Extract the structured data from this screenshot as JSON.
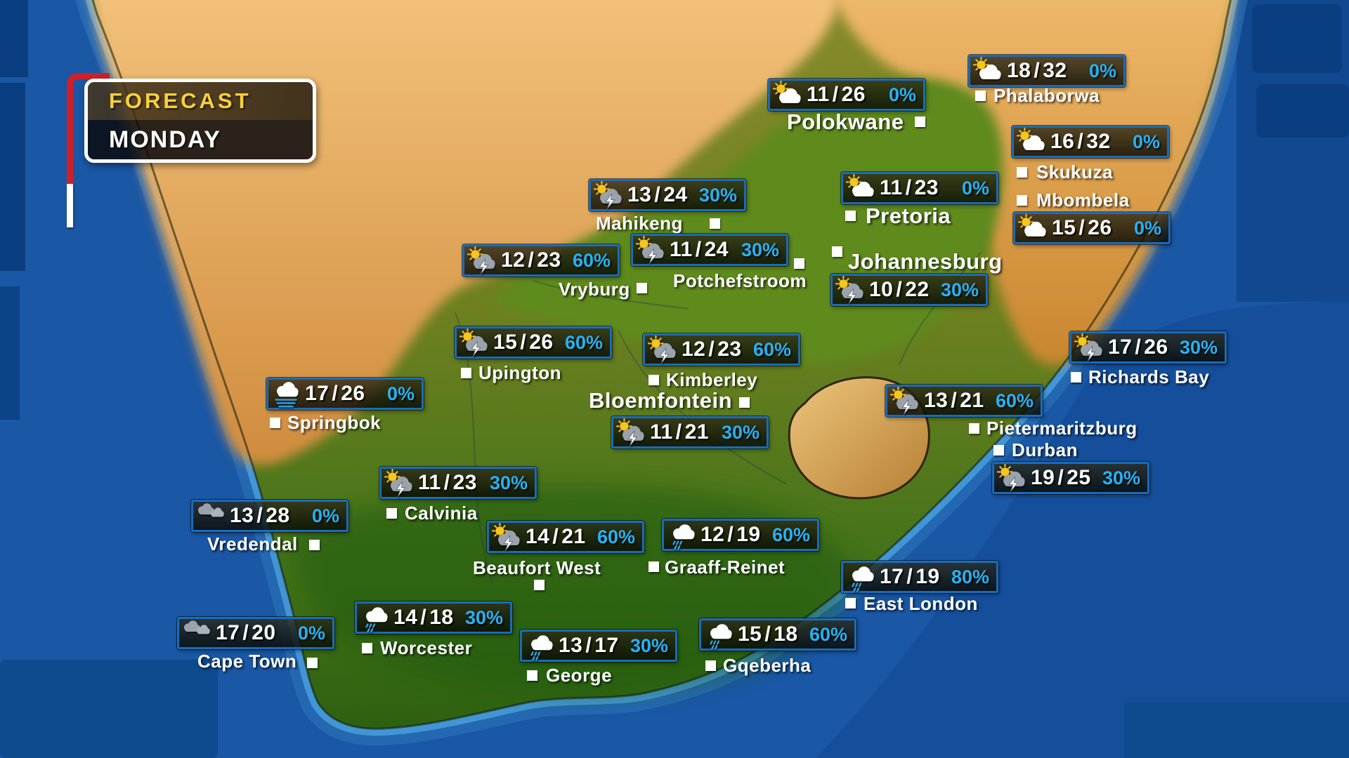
{
  "header": {
    "title": "FORECAST",
    "day": "MONDAY"
  },
  "colors": {
    "badge_border_blue": "#1a6cba",
    "precip_blue": "#25b2f4",
    "forecast_yellow": "#f7d03c",
    "red_accent": "#cf2027",
    "label_white": "#ffffff",
    "ocean_blue": "#1a57a5",
    "desert_orange": "#e0a552",
    "land_green": "#5d7f1d"
  },
  "icon_legend": {
    "partly-cloudy": "sun with white cloud",
    "thunder": "sun with grey cloud and lightning bolt",
    "rain": "white cloud with rain streaks",
    "cloudy": "two grey clouds",
    "fog": "white cloud over mist lines"
  },
  "cities": [
    {
      "name": "Polokwane",
      "min": 11,
      "max": 26,
      "precip": "0%",
      "icon": "partly-cloudy",
      "major": true,
      "badge": [
        1093,
        112
      ],
      "label": [
        1120,
        156
      ],
      "marker": [
        1302,
        166
      ]
    },
    {
      "name": "Phalaborwa",
      "min": 18,
      "max": 32,
      "precip": "0%",
      "icon": "partly-cloudy",
      "major": false,
      "badge": [
        1378,
        78
      ],
      "label": [
        1414,
        121
      ],
      "marker": [
        1388,
        129
      ]
    },
    {
      "name": "Skukuza",
      "min": 16,
      "max": 32,
      "precip": "0%",
      "icon": "partly-cloudy",
      "major": false,
      "badge": [
        1440,
        179
      ],
      "label": [
        1475,
        230
      ],
      "marker": [
        1447,
        238
      ]
    },
    {
      "name": "Mbombela",
      "min": 15,
      "max": 26,
      "precip": "0%",
      "icon": "partly-cloudy",
      "major": false,
      "badge": [
        1442,
        302
      ],
      "label": [
        1475,
        270
      ],
      "marker": [
        1447,
        278
      ]
    },
    {
      "name": "Pretoria",
      "min": 11,
      "max": 23,
      "precip": "0%",
      "icon": "partly-cloudy",
      "major": true,
      "badge": [
        1197,
        245
      ],
      "label": [
        1232,
        290
      ],
      "marker": [
        1203,
        300
      ]
    },
    {
      "name": "Johannesburg",
      "min": 10,
      "max": 22,
      "precip": "30%",
      "icon": "thunder",
      "major": true,
      "badge": [
        1182,
        390
      ],
      "label": [
        1207,
        355
      ],
      "marker": [
        1184,
        351
      ]
    },
    {
      "name": "Mahikeng",
      "min": 13,
      "max": 24,
      "precip": "30%",
      "icon": "thunder",
      "major": false,
      "badge": [
        838,
        255
      ],
      "label": [
        848,
        303
      ],
      "marker": [
        1010,
        311
      ]
    },
    {
      "name": "Potchefstroom",
      "min": 11,
      "max": 24,
      "precip": "30%",
      "icon": "thunder",
      "major": false,
      "badge": [
        898,
        333
      ],
      "label": [
        958,
        385
      ],
      "marker": [
        1130,
        368
      ]
    },
    {
      "name": "Vryburg",
      "min": 12,
      "max": 23,
      "precip": "60%",
      "icon": "thunder",
      "major": false,
      "badge": [
        658,
        348
      ],
      "label": [
        795,
        397
      ],
      "marker": [
        906,
        403
      ]
    },
    {
      "name": "Upington",
      "min": 15,
      "max": 26,
      "precip": "60%",
      "icon": "thunder",
      "major": false,
      "badge": [
        647,
        465
      ],
      "label": [
        681,
        516
      ],
      "marker": [
        656,
        524
      ]
    },
    {
      "name": "Kimberley",
      "min": 12,
      "max": 23,
      "precip": "60%",
      "icon": "thunder",
      "major": false,
      "badge": [
        915,
        475
      ],
      "label": [
        948,
        526
      ],
      "marker": [
        923,
        534
      ]
    },
    {
      "name": "Bloemfontein",
      "min": 11,
      "max": 21,
      "precip": "30%",
      "icon": "thunder",
      "major": true,
      "badge": [
        870,
        593
      ],
      "label": [
        838,
        553
      ],
      "marker": [
        1052,
        566
      ]
    },
    {
      "name": "Richards Bay",
      "min": 17,
      "max": 26,
      "precip": "30%",
      "icon": "thunder",
      "major": false,
      "badge": [
        1522,
        472
      ],
      "label": [
        1549,
        522
      ],
      "marker": [
        1524,
        530
      ]
    },
    {
      "name": "Pietermaritzburg",
      "min": 13,
      "max": 21,
      "precip": "60%",
      "icon": "thunder",
      "major": false,
      "badge": [
        1260,
        548
      ],
      "label": [
        1404,
        595
      ],
      "marker": [
        1379,
        603
      ]
    },
    {
      "name": "Durban",
      "min": 19,
      "max": 25,
      "precip": "30%",
      "icon": "thunder",
      "major": false,
      "badge": [
        1412,
        658
      ],
      "label": [
        1440,
        626
      ],
      "marker": [
        1414,
        634
      ]
    },
    {
      "name": "Springbok",
      "min": 17,
      "max": 26,
      "precip": "0%",
      "icon": "fog",
      "major": false,
      "badge": [
        379,
        538
      ],
      "label": [
        409,
        587
      ],
      "marker": [
        384,
        595
      ]
    },
    {
      "name": "Vredendal",
      "min": 13,
      "max": 28,
      "precip": "0%",
      "icon": "cloudy",
      "major": false,
      "badge": [
        272,
        712
      ],
      "label": [
        295,
        760
      ],
      "marker": [
        440,
        769
      ]
    },
    {
      "name": "Calvinia",
      "min": 11,
      "max": 23,
      "precip": "30%",
      "icon": "thunder",
      "major": false,
      "badge": [
        540,
        665
      ],
      "label": [
        576,
        716
      ],
      "marker": [
        550,
        724
      ]
    },
    {
      "name": "Beaufort West",
      "min": 14,
      "max": 21,
      "precip": "60%",
      "icon": "thunder",
      "major": false,
      "badge": [
        693,
        742
      ],
      "label": [
        673,
        794
      ],
      "marker": [
        760,
        826
      ]
    },
    {
      "name": "Graaff-Reinet",
      "min": 12,
      "max": 19,
      "precip": "60%",
      "icon": "rain",
      "major": false,
      "badge": [
        942,
        739
      ],
      "label": [
        946,
        793
      ],
      "marker": [
        923,
        800
      ]
    },
    {
      "name": "East London",
      "min": 17,
      "max": 19,
      "precip": "80%",
      "icon": "rain",
      "major": false,
      "badge": [
        1197,
        799
      ],
      "label": [
        1229,
        845
      ],
      "marker": [
        1203,
        852
      ]
    },
    {
      "name": "Cape Town",
      "min": 17,
      "max": 20,
      "precip": "0%",
      "icon": "cloudy",
      "major": false,
      "badge": [
        252,
        879
      ],
      "label": [
        281,
        927
      ],
      "marker": [
        437,
        937
      ]
    },
    {
      "name": "Worcester",
      "min": 14,
      "max": 18,
      "precip": "30%",
      "icon": "rain",
      "major": false,
      "badge": [
        505,
        857
      ],
      "label": [
        541,
        908
      ],
      "marker": [
        515,
        916
      ]
    },
    {
      "name": "George",
      "min": 13,
      "max": 17,
      "precip": "30%",
      "icon": "rain",
      "major": false,
      "badge": [
        740,
        897
      ],
      "label": [
        777,
        947
      ],
      "marker": [
        750,
        955
      ]
    },
    {
      "name": "Gqeberha",
      "min": 15,
      "max": 18,
      "precip": "60%",
      "icon": "rain",
      "major": false,
      "badge": [
        995,
        881
      ],
      "label": [
        1029,
        933
      ],
      "marker": [
        1004,
        941
      ]
    }
  ]
}
